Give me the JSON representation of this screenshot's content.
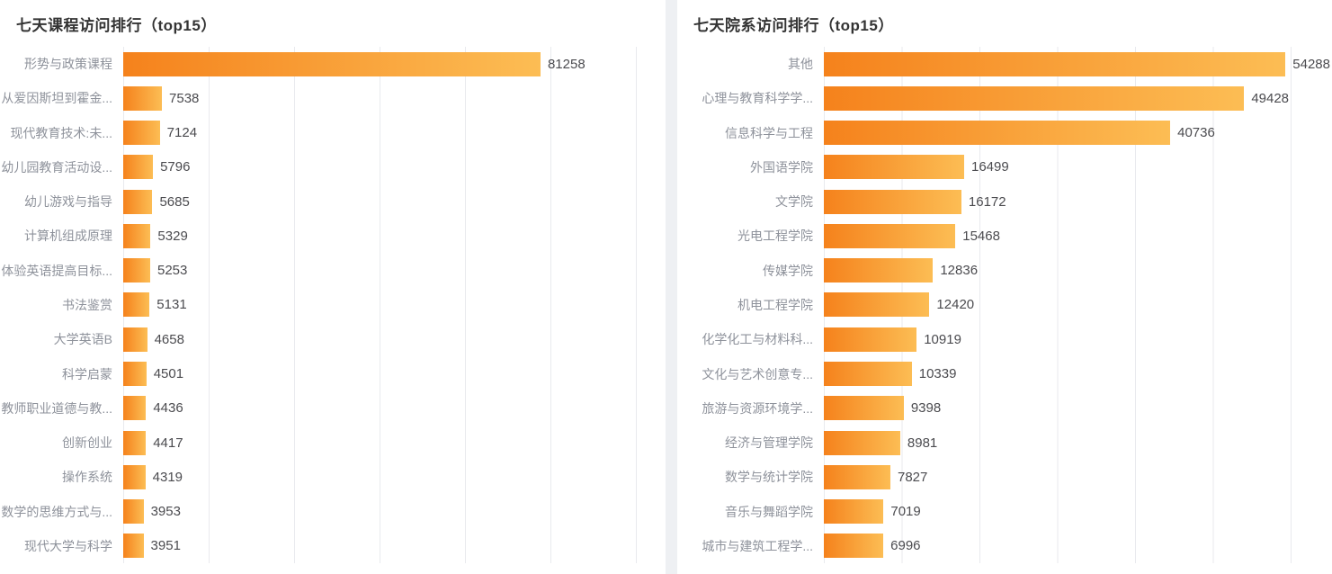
{
  "colors": {
    "bar_gradient_start": "#f5821c",
    "bar_gradient_end": "#fcbd54",
    "gridline": "#e9eaee",
    "panel_divider": "#eef0f3",
    "title_text": "#333333",
    "category_label_text": "#8e929b",
    "value_label_text": "#4b4b4f",
    "panel_background": "#ffffff"
  },
  "chart_data": [
    {
      "type": "bar",
      "orientation": "horizontal",
      "title": "七天课程访问排行（top15）",
      "categories": [
        "形势与政策课程",
        "从爱因斯坦到霍金...",
        "现代教育技术:未...",
        "幼儿园教育活动设...",
        "幼儿游戏与指导",
        "计算机组成原理",
        "体验英语提高目标...",
        "书法鉴赏",
        "大学英语B",
        "科学启蒙",
        "教师职业道德与教...",
        "创新创业",
        "操作系统",
        "数学的思维方式与...",
        "现代大学与科学"
      ],
      "values": [
        81258,
        7538,
        7124,
        5796,
        5685,
        5329,
        5253,
        5131,
        4658,
        4501,
        4436,
        4417,
        4319,
        3953,
        3951
      ],
      "xlim": [
        0,
        100000
      ],
      "xlabel": "",
      "ylabel": "",
      "grid": true,
      "grid_divisions": 6,
      "value_labels": true,
      "legend": false
    },
    {
      "type": "bar",
      "orientation": "horizontal",
      "title": "七天院系访问排行（top15）",
      "categories": [
        "其他",
        "心理与教育科学学...",
        "信息科学与工程",
        "外国语学院",
        "文学院",
        "光电工程学院",
        "传媒学院",
        "机电工程学院",
        "化学化工与材料科...",
        "文化与艺术创意专...",
        "旅游与资源环境学...",
        "经济与管理学院",
        "数学与统计学院",
        "音乐与舞蹈学院",
        "城市与建筑工程学..."
      ],
      "values": [
        54288,
        49428,
        40736,
        16499,
        16172,
        15468,
        12836,
        12420,
        10919,
        10339,
        9398,
        8981,
        7827,
        7019,
        6996
      ],
      "xlim": [
        0,
        55000
      ],
      "xlabel": "",
      "ylabel": "",
      "grid": true,
      "grid_divisions": 6,
      "value_labels": true,
      "legend": false
    }
  ]
}
